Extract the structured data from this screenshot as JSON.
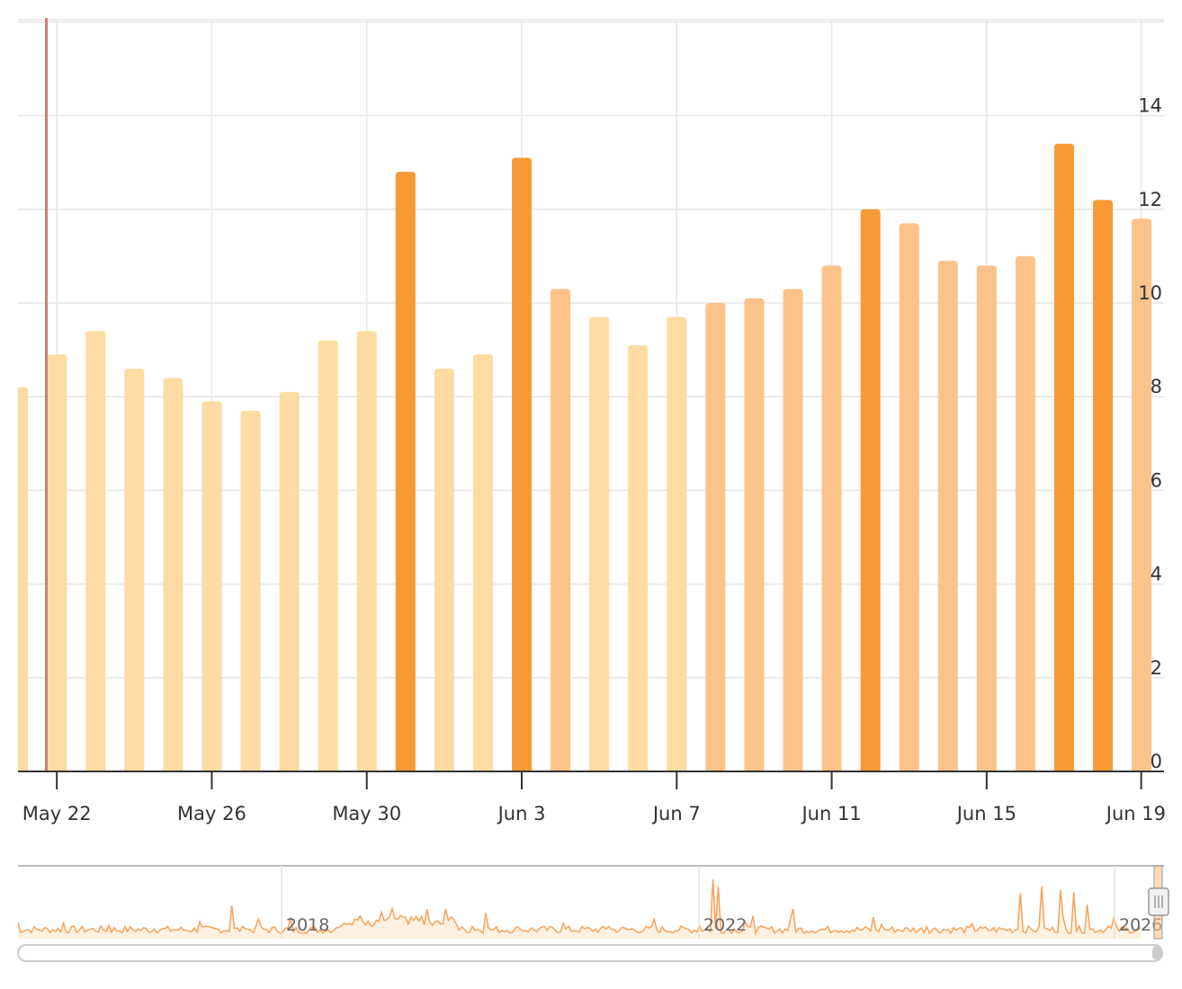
{
  "chart_data": {
    "type": "bar",
    "title": "",
    "xlabel": "",
    "ylabel": "",
    "ylim": [
      0,
      16
    ],
    "y_ticks": [
      "0",
      "2",
      "4",
      "6",
      "8",
      "10",
      "12",
      "14"
    ],
    "x_tick_labels": [
      "May 22",
      "May 26",
      "May 30",
      "Jun 3",
      "Jun 7",
      "Jun 11",
      "Jun 15",
      "Jun 19"
    ],
    "grid": true,
    "y_axis_side": "right",
    "categories": [
      "2025-05-21",
      "2025-05-22",
      "2025-05-23",
      "2025-05-24",
      "2025-05-25",
      "2025-05-26",
      "2025-05-27",
      "2025-05-28",
      "2025-05-29",
      "2025-05-30",
      "2025-05-31",
      "2025-06-01",
      "2025-06-02",
      "2025-06-03",
      "2025-06-04",
      "2025-06-05",
      "2025-06-06",
      "2025-06-07",
      "2025-06-08",
      "2025-06-09",
      "2025-06-10",
      "2025-06-11",
      "2025-06-12",
      "2025-06-13",
      "2025-06-14",
      "2025-06-15",
      "2025-06-16",
      "2025-06-17",
      "2025-06-18",
      "2025-06-19"
    ],
    "values": [
      8.2,
      8.9,
      9.4,
      8.6,
      8.4,
      7.9,
      7.7,
      8.1,
      9.2,
      9.4,
      12.8,
      8.6,
      8.9,
      13.1,
      10.3,
      9.7,
      9.1,
      9.7,
      10.0,
      10.1,
      10.3,
      10.8,
      12.0,
      11.7,
      10.9,
      10.8,
      11.0,
      13.4,
      12.2,
      11.8
    ],
    "levels": [
      1,
      1,
      1,
      1,
      1,
      1,
      1,
      1,
      1,
      1,
      3,
      1,
      1,
      3,
      2,
      1,
      1,
      1,
      2,
      2,
      2,
      2,
      3,
      2,
      2,
      2,
      2,
      3,
      3,
      2
    ],
    "colors": {
      "level_1": "#FEDBA2",
      "level_2": "#FBC38A",
      "level_3": "#F79A35",
      "grid": "#E6E6E6",
      "axis": "#333333",
      "marker": "#C97E78",
      "navigator_line": "#F7A25A",
      "navigator_fill": "#FEF1E2"
    },
    "navigator": {
      "year_labels": [
        "2018",
        "2022",
        "2026"
      ]
    }
  }
}
